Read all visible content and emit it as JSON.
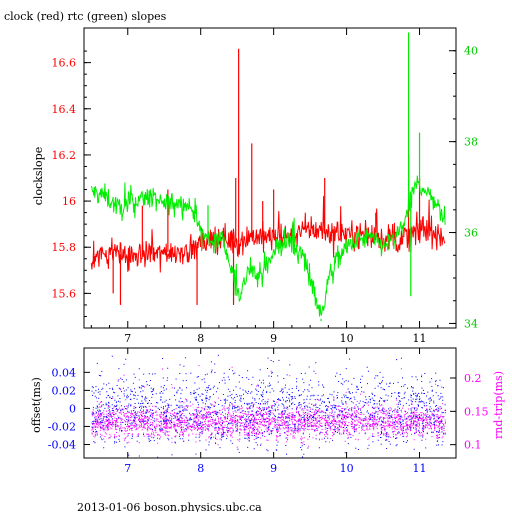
{
  "title": "clock (red) rtc (green) slopes",
  "footer": "2013-01-06  boson.physics.ubc.ca",
  "colors": {
    "red": "#ff0000",
    "green": "#00ee00",
    "blue": "#0000ff",
    "magenta": "#ff00ff",
    "axis": "#000000"
  },
  "chart_data": [
    {
      "type": "line",
      "title": "clock (red) rtc (green) slopes",
      "xlabel": "",
      "ylabel": "clockslope",
      "y2label": "",
      "xlim": [
        6.4,
        11.5
      ],
      "ylim": [
        15.45,
        16.75
      ],
      "y2lim": [
        33.9,
        40.5
      ],
      "x_ticks": [
        "7",
        "8",
        "9",
        "10",
        "11"
      ],
      "y_ticks": [
        "15.6",
        "15.8",
        "16",
        "16.2",
        "16.4",
        "16.6"
      ],
      "y2_ticks": [
        "34",
        "36",
        "38",
        "40"
      ],
      "grid": false,
      "series": [
        {
          "name": "clock (red)",
          "color": "#ff0000",
          "axis": "left",
          "baseline": [
            [
              6.5,
              15.75
            ],
            [
              6.8,
              15.78
            ],
            [
              7.0,
              15.76
            ],
            [
              7.3,
              15.77
            ],
            [
              7.6,
              15.78
            ],
            [
              7.9,
              15.79
            ],
            [
              8.1,
              15.83
            ],
            [
              8.3,
              15.84
            ],
            [
              8.5,
              15.82
            ],
            [
              8.7,
              15.85
            ],
            [
              9.0,
              15.84
            ],
            [
              9.3,
              15.86
            ],
            [
              9.5,
              15.88
            ],
            [
              9.7,
              15.87
            ],
            [
              10.0,
              15.86
            ],
            [
              10.3,
              15.85
            ],
            [
              10.5,
              15.84
            ],
            [
              10.7,
              15.83
            ],
            [
              10.9,
              15.86
            ],
            [
              11.1,
              15.88
            ],
            [
              11.35,
              15.84
            ]
          ],
          "spikes": [
            [
              8.52,
              16.66
            ],
            [
              8.48,
              16.1
            ],
            [
              8.45,
              15.55
            ],
            [
              7.95,
              15.55
            ],
            [
              8.7,
              16.25
            ],
            [
              7.55,
              16.05
            ],
            [
              6.8,
              15.6
            ],
            [
              6.9,
              15.55
            ],
            [
              9.7,
              16.1
            ],
            [
              10.85,
              16.2
            ],
            [
              11.0,
              16.1
            ],
            [
              8.85,
              16.0
            ],
            [
              7.2,
              15.98
            ],
            [
              9.0,
              16.05
            ],
            [
              10.4,
              15.95
            ]
          ]
        },
        {
          "name": "rtc (green)",
          "color": "#00ee00",
          "axis": "right",
          "baseline": [
            [
              6.5,
              36.9
            ],
            [
              6.7,
              36.8
            ],
            [
              6.9,
              36.5
            ],
            [
              7.1,
              36.7
            ],
            [
              7.3,
              36.8
            ],
            [
              7.5,
              36.6
            ],
            [
              7.7,
              36.7
            ],
            [
              7.9,
              36.5
            ],
            [
              8.0,
              36.0
            ],
            [
              8.15,
              35.8
            ],
            [
              8.3,
              35.9
            ],
            [
              8.4,
              35.3
            ],
            [
              8.55,
              34.6
            ],
            [
              8.65,
              35.2
            ],
            [
              8.8,
              35.0
            ],
            [
              9.0,
              35.6
            ],
            [
              9.2,
              35.8
            ],
            [
              9.4,
              35.5
            ],
            [
              9.55,
              34.8
            ],
            [
              9.65,
              34.1
            ],
            [
              9.75,
              35.0
            ],
            [
              9.9,
              35.5
            ],
            [
              10.1,
              35.8
            ],
            [
              10.3,
              35.9
            ],
            [
              10.5,
              35.7
            ],
            [
              10.7,
              35.9
            ],
            [
              10.85,
              36.5
            ],
            [
              10.95,
              37.1
            ],
            [
              11.1,
              36.9
            ],
            [
              11.25,
              36.6
            ],
            [
              11.35,
              36.2
            ]
          ],
          "spikes": [
            [
              10.85,
              40.4
            ],
            [
              10.88,
              34.6
            ],
            [
              11.0,
              38.2
            ],
            [
              8.1,
              36.6
            ],
            [
              9.65,
              34.05
            ]
          ]
        }
      ]
    },
    {
      "type": "scatter",
      "title": "",
      "xlabel": "",
      "ylabel": "offset(ms)",
      "y2label": "rnd-trip(ms)",
      "xlim": [
        6.4,
        11.5
      ],
      "ylim": [
        -0.055,
        0.067
      ],
      "y2lim": [
        0.08,
        0.245
      ],
      "x_ticks": [
        "7",
        "8",
        "9",
        "10",
        "11"
      ],
      "y_ticks": [
        "-0.04",
        "-0.02",
        "0",
        "0.02",
        "0.04"
      ],
      "y2_ticks": [
        "0.1",
        "0.15",
        "0.2"
      ],
      "series": [
        {
          "name": "offset",
          "color": "#0000ff",
          "axis": "left",
          "center": 0.0,
          "spread": 0.02,
          "outlier_max": 0.06
        },
        {
          "name": "rnd-trip",
          "color": "#ff00ff",
          "axis": "right",
          "center": 0.135,
          "spread": 0.012,
          "outlier_max": 0.22
        }
      ]
    }
  ]
}
